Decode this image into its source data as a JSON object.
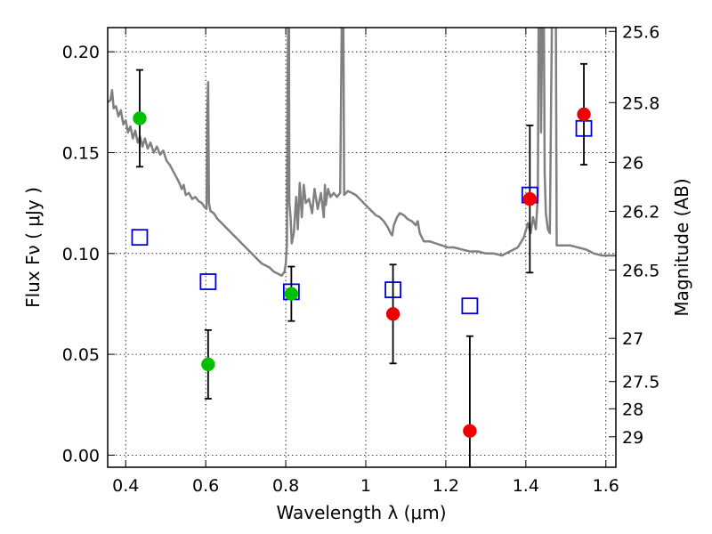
{
  "chart_data": {
    "type": "scatter",
    "title": "",
    "xlabel": "Wavelength  λ (μm)",
    "ylabel_left": "Flux  Fν  ( μJy )",
    "ylabel_right": "Magnitude (AB)",
    "xlim": [
      0.355,
      1.625
    ],
    "ylim": [
      -0.006,
      0.212
    ],
    "grid": true,
    "x_ticks": [
      0.4,
      0.6,
      0.8,
      1,
      1.2,
      1.4,
      1.6
    ],
    "x_tick_labels": [
      "0.4",
      "0.6",
      "0.8",
      "1",
      "1.2",
      "1.4",
      "1.6"
    ],
    "y_ticks": [
      0.0,
      0.05,
      0.1,
      0.15,
      0.2
    ],
    "y_tick_labels": [
      "0.00",
      "0.05",
      "0.10",
      "0.15",
      "0.20"
    ],
    "right_ticks": [
      {
        "label": "25.6",
        "flux": 0.2101
      },
      {
        "label": "25.8",
        "flux": 0.1748
      },
      {
        "label": "26",
        "flux": 0.1452
      },
      {
        "label": "26.2",
        "flux": 0.1209
      },
      {
        "label": "26.5",
        "flux": 0.0918
      },
      {
        "label": "27",
        "flux": 0.0579
      },
      {
        "label": "27.5",
        "flux": 0.0365
      },
      {
        "label": "28",
        "flux": 0.023
      },
      {
        "label": "29",
        "flux": 0.0091
      }
    ],
    "series": [
      {
        "color": "#00c000",
        "marker": "circle",
        "points": [
          {
            "x": 0.435,
            "y": 0.167,
            "yerr": 0.024
          },
          {
            "x": 0.606,
            "y": 0.045,
            "yerr": 0.017
          },
          {
            "x": 0.814,
            "y": 0.08,
            "yerr": 0.0135
          }
        ]
      },
      {
        "color": "#ee0000",
        "marker": "circle",
        "points": [
          {
            "x": 1.068,
            "y": 0.07,
            "yerr": 0.0245
          },
          {
            "x": 1.26,
            "y": 0.012,
            "yerr": 0.047
          },
          {
            "x": 1.41,
            "y": 0.127,
            "yerr": 0.0365
          },
          {
            "x": 1.545,
            "y": 0.169,
            "yerr": 0.025
          }
        ]
      },
      {
        "color": "#0000dd",
        "marker": "open-square",
        "points": [
          {
            "x": 0.435,
            "y": 0.108
          },
          {
            "x": 0.606,
            "y": 0.086
          },
          {
            "x": 0.814,
            "y": 0.081
          },
          {
            "x": 1.068,
            "y": 0.082
          },
          {
            "x": 1.26,
            "y": 0.074
          },
          {
            "x": 1.41,
            "y": 0.129
          },
          {
            "x": 1.545,
            "y": 0.162
          }
        ]
      },
      {
        "color": "#808080",
        "style": "line",
        "points": [
          [
            0.355,
            0.175
          ],
          [
            0.362,
            0.176
          ],
          [
            0.366,
            0.181
          ],
          [
            0.37,
            0.172
          ],
          [
            0.376,
            0.173
          ],
          [
            0.382,
            0.168
          ],
          [
            0.388,
            0.171
          ],
          [
            0.394,
            0.164
          ],
          [
            0.4,
            0.166
          ],
          [
            0.406,
            0.16
          ],
          [
            0.412,
            0.163
          ],
          [
            0.418,
            0.157
          ],
          [
            0.424,
            0.161
          ],
          [
            0.43,
            0.155
          ],
          [
            0.436,
            0.158
          ],
          [
            0.442,
            0.153
          ],
          [
            0.448,
            0.157
          ],
          [
            0.455,
            0.152
          ],
          [
            0.462,
            0.155
          ],
          [
            0.47,
            0.15
          ],
          [
            0.478,
            0.153
          ],
          [
            0.486,
            0.149
          ],
          [
            0.494,
            0.151
          ],
          [
            0.502,
            0.146
          ],
          [
            0.51,
            0.144
          ],
          [
            0.518,
            0.141
          ],
          [
            0.526,
            0.138
          ],
          [
            0.534,
            0.135
          ],
          [
            0.54,
            0.132
          ],
          [
            0.545,
            0.134
          ],
          [
            0.55,
            0.129
          ],
          [
            0.558,
            0.13
          ],
          [
            0.566,
            0.127
          ],
          [
            0.574,
            0.128
          ],
          [
            0.582,
            0.126
          ],
          [
            0.59,
            0.125
          ],
          [
            0.597,
            0.123
          ],
          [
            0.602,
            0.122
          ],
          [
            0.604,
            0.17
          ],
          [
            0.606,
            0.185
          ],
          [
            0.608,
            0.125
          ],
          [
            0.612,
            0.121
          ],
          [
            0.62,
            0.12
          ],
          [
            0.63,
            0.117
          ],
          [
            0.64,
            0.115
          ],
          [
            0.65,
            0.113
          ],
          [
            0.66,
            0.111
          ],
          [
            0.67,
            0.109
          ],
          [
            0.68,
            0.107
          ],
          [
            0.69,
            0.105
          ],
          [
            0.7,
            0.103
          ],
          [
            0.71,
            0.101
          ],
          [
            0.72,
            0.099
          ],
          [
            0.73,
            0.097
          ],
          [
            0.74,
            0.095
          ],
          [
            0.75,
            0.094
          ],
          [
            0.76,
            0.093
          ],
          [
            0.77,
            0.091
          ],
          [
            0.78,
            0.09
          ],
          [
            0.79,
            0.089
          ],
          [
            0.797,
            0.091
          ],
          [
            0.8,
            0.095
          ],
          [
            0.803,
            0.105
          ],
          [
            0.805,
            0.19
          ],
          [
            0.806,
            0.214
          ],
          [
            0.808,
            0.214
          ],
          [
            0.809,
            0.125
          ],
          [
            0.812,
            0.118
          ],
          [
            0.815,
            0.105
          ],
          [
            0.82,
            0.11
          ],
          [
            0.826,
            0.128
          ],
          [
            0.83,
            0.112
          ],
          [
            0.835,
            0.135
          ],
          [
            0.84,
            0.118
          ],
          [
            0.845,
            0.134
          ],
          [
            0.85,
            0.125
          ],
          [
            0.858,
            0.127
          ],
          [
            0.866,
            0.12
          ],
          [
            0.872,
            0.132
          ],
          [
            0.88,
            0.122
          ],
          [
            0.888,
            0.13
          ],
          [
            0.895,
            0.118
          ],
          [
            0.898,
            0.134
          ],
          [
            0.9,
            0.124
          ],
          [
            0.906,
            0.132
          ],
          [
            0.912,
            0.128
          ],
          [
            0.92,
            0.13
          ],
          [
            0.928,
            0.128
          ],
          [
            0.936,
            0.13
          ],
          [
            0.94,
            0.214
          ],
          [
            0.944,
            0.214
          ],
          [
            0.946,
            0.129
          ],
          [
            0.955,
            0.131
          ],
          [
            0.965,
            0.13
          ],
          [
            0.975,
            0.129
          ],
          [
            0.985,
            0.127
          ],
          [
            0.995,
            0.125
          ],
          [
            1.005,
            0.123
          ],
          [
            1.015,
            0.121
          ],
          [
            1.025,
            0.119
          ],
          [
            1.035,
            0.118
          ],
          [
            1.045,
            0.116
          ],
          [
            1.055,
            0.113
          ],
          [
            1.062,
            0.11
          ],
          [
            1.066,
            0.109
          ],
          [
            1.07,
            0.114
          ],
          [
            1.078,
            0.118
          ],
          [
            1.085,
            0.12
          ],
          [
            1.095,
            0.119
          ],
          [
            1.105,
            0.117
          ],
          [
            1.115,
            0.116
          ],
          [
            1.125,
            0.114
          ],
          [
            1.13,
            0.116
          ],
          [
            1.135,
            0.11
          ],
          [
            1.145,
            0.106
          ],
          [
            1.16,
            0.106
          ],
          [
            1.175,
            0.105
          ],
          [
            1.19,
            0.104
          ],
          [
            1.205,
            0.103
          ],
          [
            1.22,
            0.103
          ],
          [
            1.24,
            0.102
          ],
          [
            1.26,
            0.101
          ],
          [
            1.28,
            0.101
          ],
          [
            1.3,
            0.1
          ],
          [
            1.32,
            0.1
          ],
          [
            1.34,
            0.099
          ],
          [
            1.36,
            0.101
          ],
          [
            1.38,
            0.103
          ],
          [
            1.395,
            0.108
          ],
          [
            1.405,
            0.115
          ],
          [
            1.412,
            0.11
          ],
          [
            1.418,
            0.118
          ],
          [
            1.425,
            0.112
          ],
          [
            1.43,
            0.128
          ],
          [
            1.432,
            0.214
          ],
          [
            1.436,
            0.214
          ],
          [
            1.438,
            0.16
          ],
          [
            1.441,
            0.214
          ],
          [
            1.445,
            0.214
          ],
          [
            1.447,
            0.14
          ],
          [
            1.45,
            0.12
          ],
          [
            1.455,
            0.112
          ],
          [
            1.46,
            0.11
          ],
          [
            1.465,
            0.214
          ],
          [
            1.475,
            0.214
          ],
          [
            1.477,
            0.104
          ],
          [
            1.49,
            0.104
          ],
          [
            1.51,
            0.104
          ],
          [
            1.53,
            0.103
          ],
          [
            1.55,
            0.102
          ],
          [
            1.57,
            0.1
          ],
          [
            1.59,
            0.099
          ],
          [
            1.61,
            0.099
          ],
          [
            1.625,
            0.099
          ]
        ]
      }
    ]
  }
}
